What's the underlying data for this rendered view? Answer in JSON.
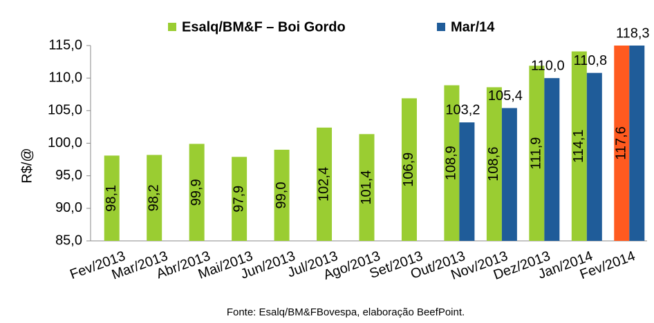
{
  "chart_data": {
    "type": "bar",
    "y_label": "R$/@",
    "source": "Fonte: Esalq/BM&FBovespa, elaboração BeefPoint.",
    "categories": [
      "Fev/2013",
      "Mar/2013",
      "Abr/2013",
      "Mai/2013",
      "Jun/2013",
      "Jul/2013",
      "Ago/2013",
      "Set/2013",
      "Out/2013",
      "Nov/2013",
      "Dez/2013",
      "Jan/2014",
      "Fev/2014"
    ],
    "series": [
      {
        "name": "Esalq/BM&F – Boi Gordo",
        "color": "#9acd32",
        "point_colors": [
          "#9acd32",
          "#9acd32",
          "#9acd32",
          "#9acd32",
          "#9acd32",
          "#9acd32",
          "#9acd32",
          "#9acd32",
          "#9acd32",
          "#9acd32",
          "#9acd32",
          "#9acd32",
          "#ff5a1f"
        ],
        "values": [
          98.1,
          98.2,
          99.9,
          97.9,
          99.0,
          102.4,
          101.4,
          106.9,
          108.9,
          108.6,
          111.9,
          114.1,
          117.6
        ],
        "value_labels": [
          "98,1",
          "98,2",
          "99,9",
          "97,9",
          "99,0",
          "102,4",
          "101,4",
          "106,9",
          "108,9",
          "108,6",
          "111,9",
          "114,1",
          "117,6"
        ]
      },
      {
        "name": "Mar/14",
        "color": "#1f5c99",
        "values": [
          null,
          null,
          null,
          null,
          null,
          null,
          null,
          null,
          103.2,
          105.4,
          110.0,
          110.8,
          118.3
        ],
        "value_labels": [
          null,
          null,
          null,
          null,
          null,
          null,
          null,
          null,
          "103,2",
          "105,4",
          "110,0",
          "110,8",
          "118,3"
        ]
      }
    ],
    "ylim": [
      85,
      115
    ],
    "yticks": [
      {
        "value": 85,
        "label": "85,0"
      },
      {
        "value": 90,
        "label": "90,0"
      },
      {
        "value": 95,
        "label": "95,0"
      },
      {
        "value": 100,
        "label": "100,0"
      },
      {
        "value": 105,
        "label": "105,0"
      },
      {
        "value": 110,
        "label": "110,0"
      },
      {
        "value": 115,
        "label": "115,0"
      }
    ],
    "legend": "top"
  }
}
